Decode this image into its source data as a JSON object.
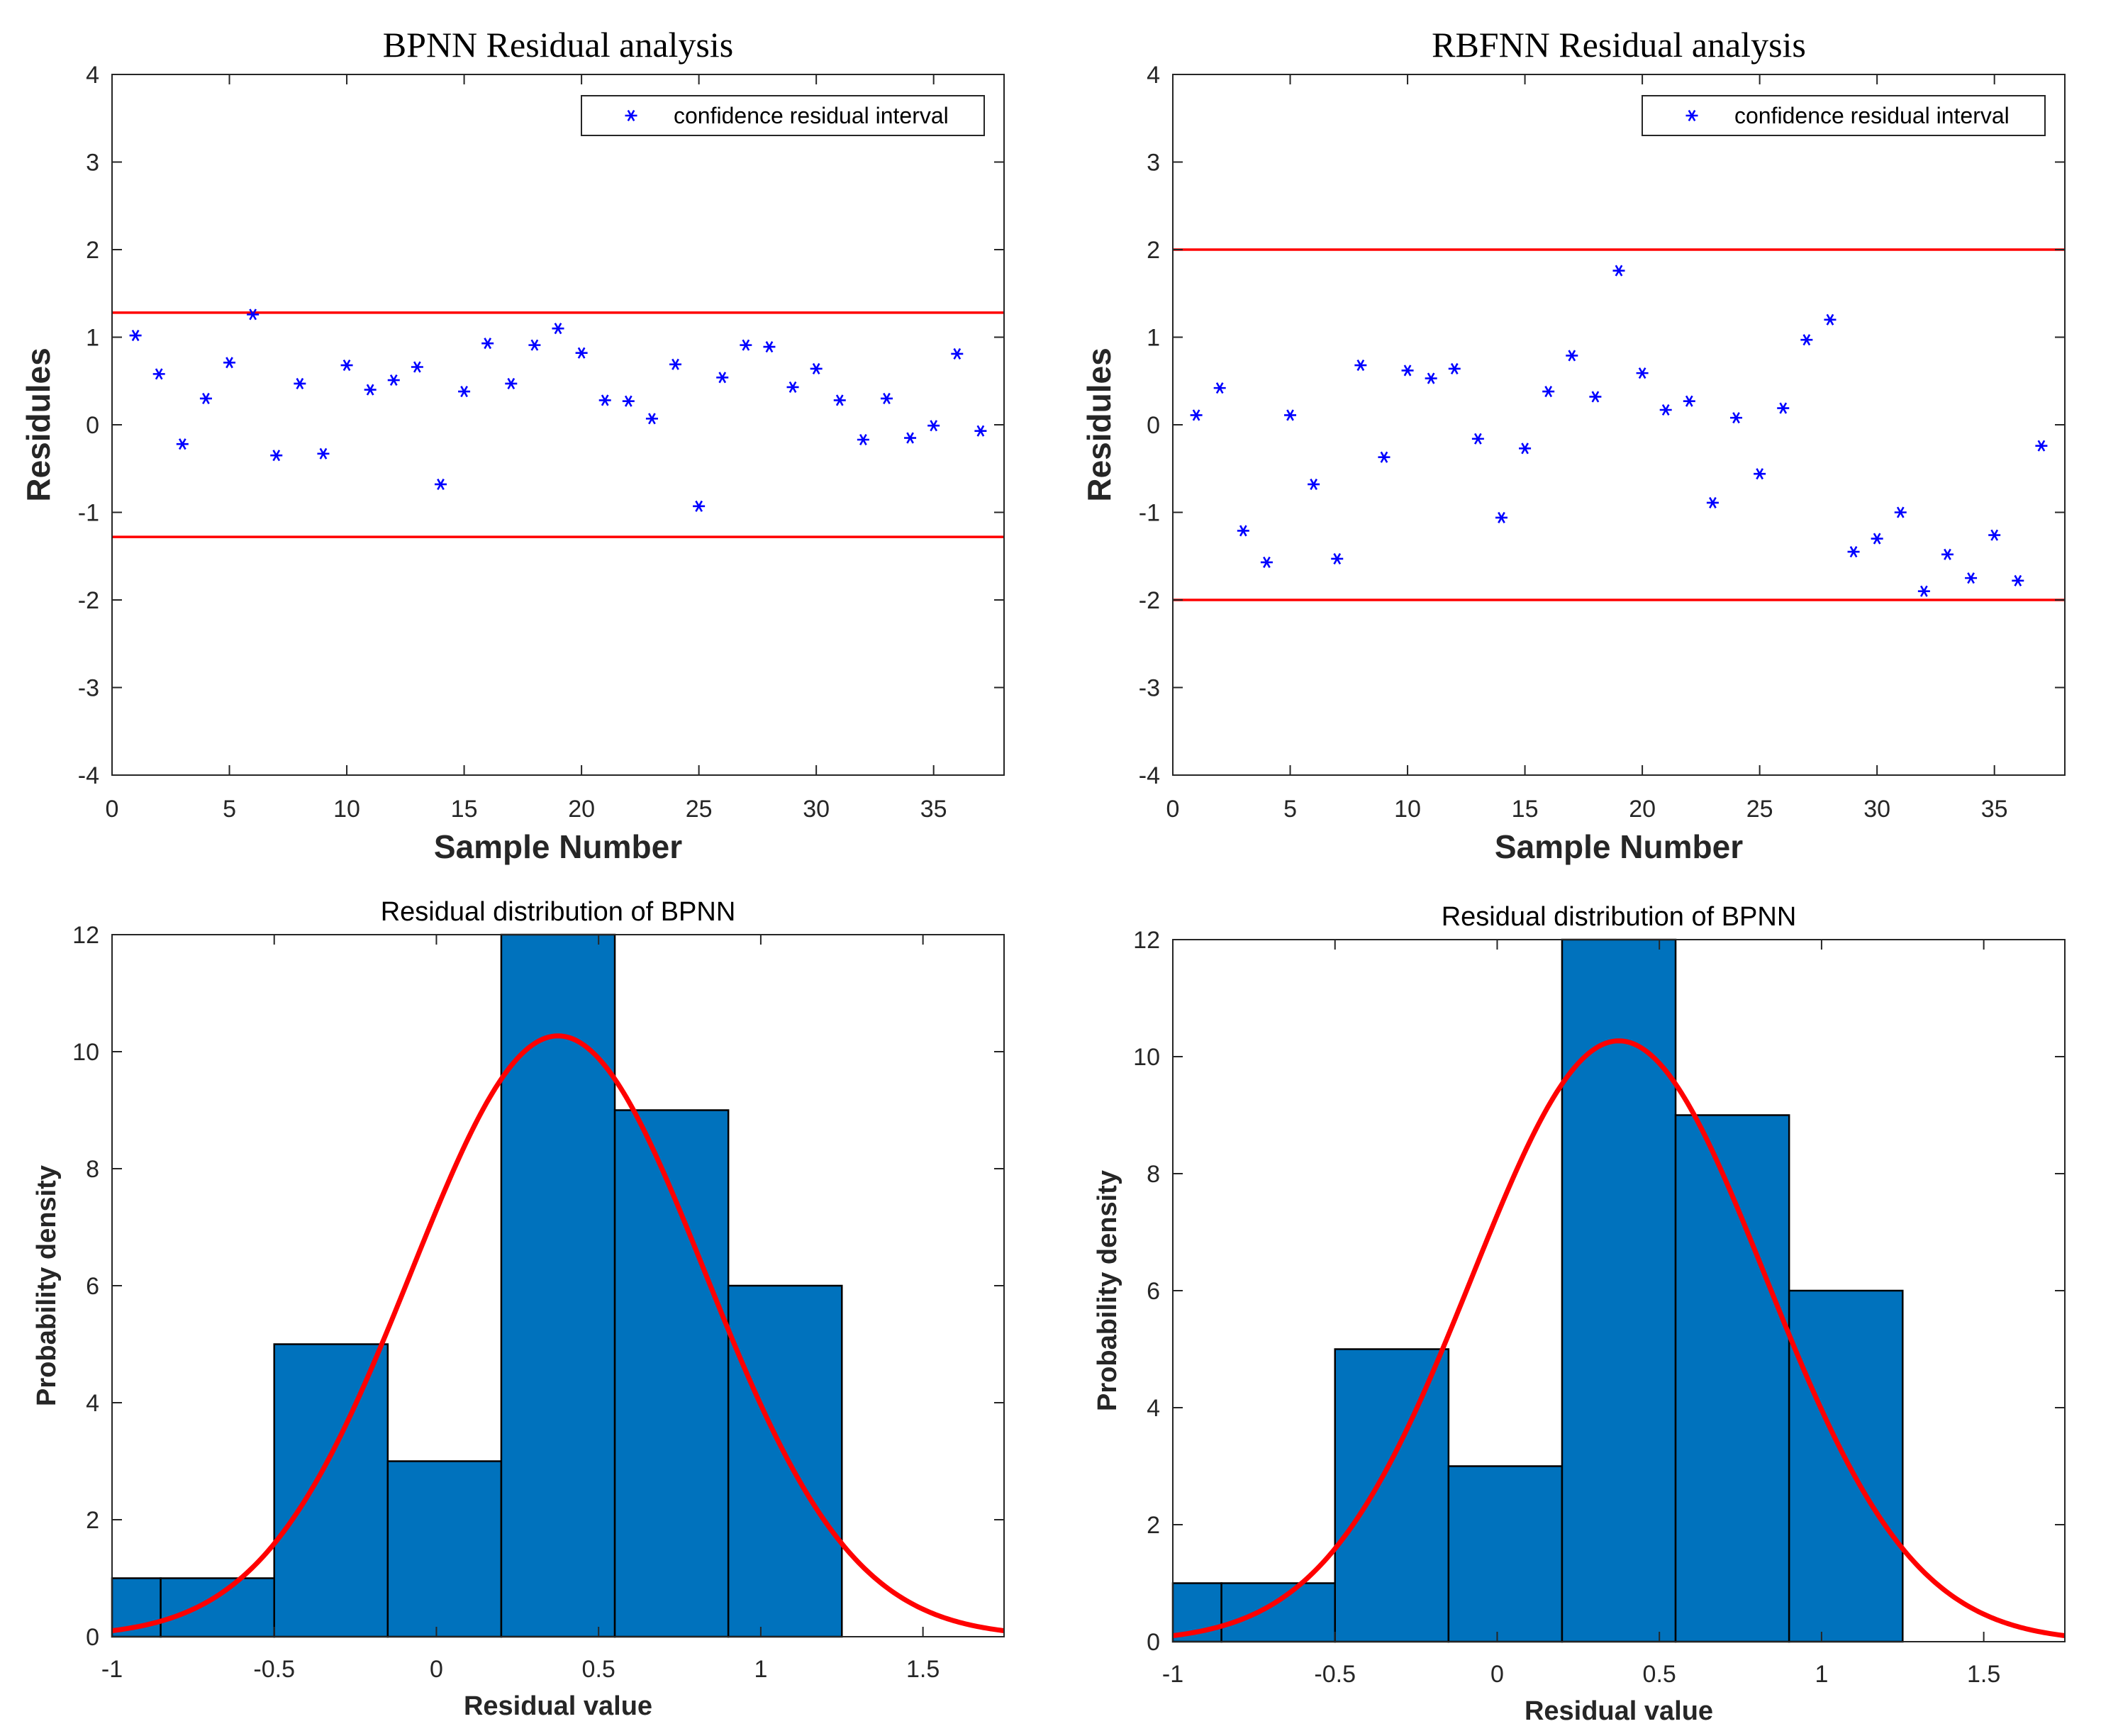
{
  "colors": {
    "marker": "#0000ff",
    "limit_line": "#ff0000",
    "bar_fill": "#0072bd",
    "curve": "#ff0000",
    "axis": "#262626"
  },
  "chart_data": [
    {
      "type": "scatter",
      "title": "BPNN Residual analysis",
      "xlabel": "Sample Number",
      "ylabel": "Residules",
      "xlim": [
        0,
        38
      ],
      "ylim": [
        -4,
        4
      ],
      "xticks": [
        0,
        5,
        10,
        15,
        20,
        25,
        30,
        35
      ],
      "yticks": [
        -4,
        -3,
        -2,
        -1,
        0,
        1,
        2,
        3,
        4
      ],
      "legend": {
        "label": "confidence residual interval",
        "placement": "top-right"
      },
      "limits": [
        1.28,
        -1.28
      ],
      "x": [
        1,
        2,
        3,
        4,
        5,
        6,
        7,
        8,
        9,
        10,
        11,
        12,
        13,
        14,
        15,
        16,
        17,
        18,
        19,
        20,
        21,
        22,
        23,
        24,
        25,
        26,
        27,
        28,
        29,
        30,
        31,
        32,
        33,
        34,
        35,
        36,
        37
      ],
      "y": [
        1.02,
        0.58,
        -0.22,
        0.3,
        0.71,
        1.26,
        -0.35,
        0.47,
        -0.33,
        0.68,
        0.4,
        0.51,
        0.66,
        -0.68,
        0.38,
        0.93,
        0.47,
        0.91,
        1.1,
        0.82,
        0.28,
        0.27,
        0.07,
        0.69,
        -0.93,
        0.54,
        0.91,
        0.89,
        0.43,
        0.64,
        0.28,
        -0.17,
        0.3,
        -0.15,
        -0.01,
        0.81,
        -0.07
      ]
    },
    {
      "type": "scatter",
      "title": "RBFNN Residual analysis",
      "xlabel": "Sample Number",
      "ylabel": "Residules",
      "xlim": [
        0,
        38
      ],
      "ylim": [
        -4,
        4
      ],
      "xticks": [
        0,
        5,
        10,
        15,
        20,
        25,
        30,
        35
      ],
      "yticks": [
        -4,
        -3,
        -2,
        -1,
        0,
        1,
        2,
        3,
        4
      ],
      "legend": {
        "label": "confidence residual interval",
        "placement": "top-right"
      },
      "limits": [
        2.0,
        -2.0
      ],
      "x": [
        1,
        2,
        3,
        4,
        5,
        6,
        7,
        8,
        9,
        10,
        11,
        12,
        13,
        14,
        15,
        16,
        17,
        18,
        19,
        20,
        21,
        22,
        23,
        24,
        25,
        26,
        27,
        28,
        29,
        30,
        31,
        32,
        33,
        34,
        35,
        36,
        37
      ],
      "y": [
        0.11,
        0.42,
        -1.21,
        -1.57,
        0.11,
        -0.68,
        -1.53,
        0.68,
        -0.37,
        0.62,
        0.53,
        0.64,
        -0.16,
        -1.06,
        -0.27,
        0.38,
        0.79,
        0.32,
        1.76,
        0.59,
        0.17,
        0.27,
        -0.89,
        0.08,
        -0.56,
        0.19,
        0.97,
        1.2,
        -1.45,
        -1.3,
        -1.0,
        -1.9,
        -1.48,
        -1.75,
        -1.26,
        -1.78,
        -0.24
      ]
    },
    {
      "type": "bar",
      "subtype": "histogram",
      "title": "Residual distribution of BPNN",
      "xlabel": "Residual value",
      "ylabel": "Probability density",
      "xlim": [
        -1,
        1.75
      ],
      "ylim": [
        0,
        12
      ],
      "xticks": [
        -1,
        -0.5,
        0,
        0.5,
        1,
        1.5
      ],
      "yticks": [
        0,
        2,
        4,
        6,
        8,
        10,
        12
      ],
      "bins": [
        {
          "x0": -1.0,
          "x1": -0.85,
          "value": 1
        },
        {
          "x0": -0.85,
          "x1": -0.5,
          "value": 1
        },
        {
          "x0": -0.5,
          "x1": -0.15,
          "value": 5
        },
        {
          "x0": -0.15,
          "x1": 0.2,
          "value": 3
        },
        {
          "x0": 0.2,
          "x1": 0.55,
          "value": 12
        },
        {
          "x0": 0.55,
          "x1": 0.9,
          "value": 9
        },
        {
          "x0": 0.9,
          "x1": 1.25,
          "value": 6
        }
      ],
      "fit": {
        "kind": "normal",
        "mean": 0.375,
        "sd": 0.453,
        "peak": 10.27
      }
    },
    {
      "type": "bar",
      "subtype": "histogram",
      "title": "Residual distribution of BPNN",
      "xlabel": "Residual value",
      "ylabel": "Probability density",
      "xlim": [
        -1,
        1.75
      ],
      "ylim": [
        0,
        12
      ],
      "xticks": [
        -1,
        -0.5,
        0,
        0.5,
        1,
        1.5
      ],
      "yticks": [
        0,
        2,
        4,
        6,
        8,
        10,
        12
      ],
      "bins": [
        {
          "x0": -1.0,
          "x1": -0.85,
          "value": 1
        },
        {
          "x0": -0.85,
          "x1": -0.5,
          "value": 1
        },
        {
          "x0": -0.5,
          "x1": -0.15,
          "value": 5
        },
        {
          "x0": -0.15,
          "x1": 0.2,
          "value": 3
        },
        {
          "x0": 0.2,
          "x1": 0.55,
          "value": 12
        },
        {
          "x0": 0.55,
          "x1": 0.9,
          "value": 9
        },
        {
          "x0": 0.9,
          "x1": 1.25,
          "value": 6
        }
      ],
      "fit": {
        "kind": "normal",
        "mean": 0.375,
        "sd": 0.453,
        "peak": 10.27
      }
    }
  ]
}
